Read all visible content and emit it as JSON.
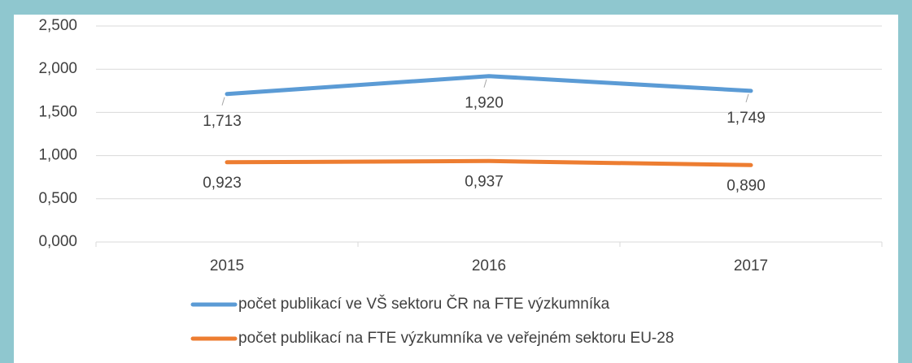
{
  "chart_data": {
    "type": "line",
    "categories": [
      "2015",
      "2016",
      "2017"
    ],
    "series": [
      {
        "name": "počet publikací ve VŠ sektoru ČR na FTE výzkumníka",
        "color": "#5b9bd5",
        "values": [
          1.713,
          1.92,
          1.749
        ],
        "value_labels": [
          "1,713",
          "1,920",
          "1,749"
        ]
      },
      {
        "name": "počet publikací na FTE výzkumníka ve veřejném sektoru EU-28",
        "color": "#ed7d31",
        "values": [
          0.923,
          0.937,
          0.89
        ],
        "value_labels": [
          "0,923",
          "0,937",
          "0,890"
        ]
      }
    ],
    "ylim": [
      0,
      2.5
    ],
    "yticks": [
      {
        "value": 0,
        "label": "0,000"
      },
      {
        "value": 0.5,
        "label": "0,500"
      },
      {
        "value": 1,
        "label": "1,000"
      },
      {
        "value": 1.5,
        "label": "1,500"
      },
      {
        "value": 2,
        "label": "2,000"
      },
      {
        "value": 2.5,
        "label": "2,500"
      }
    ],
    "grid": true
  }
}
